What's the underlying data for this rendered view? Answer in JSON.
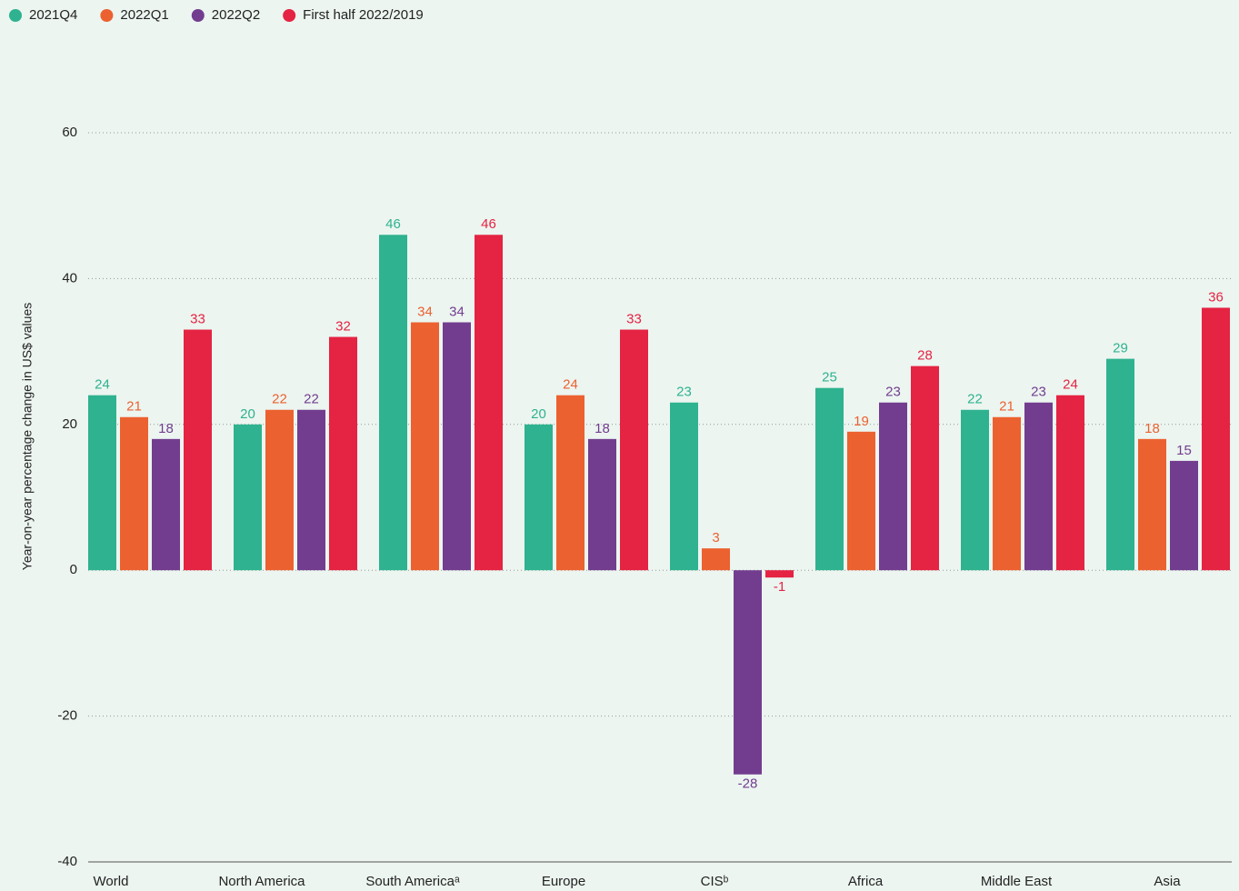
{
  "chart_data": {
    "type": "bar",
    "y_label": "Year-on-year percentage change in US$ values",
    "categories": [
      "World",
      "North America",
      "South Americaᵃ",
      "Europe",
      "CISᵇ",
      "Africa",
      "Middle East",
      "Asia"
    ],
    "series": [
      {
        "name": "2021Q4",
        "color": "#2fb28f",
        "values": [
          24,
          20,
          46,
          20,
          23,
          25,
          22,
          29
        ]
      },
      {
        "name": "2022Q1",
        "color": "#ec6130",
        "values": [
          21,
          22,
          34,
          24,
          3,
          19,
          21,
          18
        ]
      },
      {
        "name": "2022Q2",
        "color": "#723d8f",
        "values": [
          18,
          22,
          34,
          18,
          -28,
          23,
          23,
          15
        ]
      },
      {
        "name": "First half 2022/2019",
        "color": "#e52342",
        "values": [
          33,
          32,
          46,
          33,
          -1,
          28,
          24,
          36
        ]
      }
    ],
    "ylim": [
      -40,
      60
    ],
    "yticks": [
      -40,
      -20,
      0,
      20,
      40,
      60
    ],
    "grid": true,
    "legend": "top-left"
  }
}
